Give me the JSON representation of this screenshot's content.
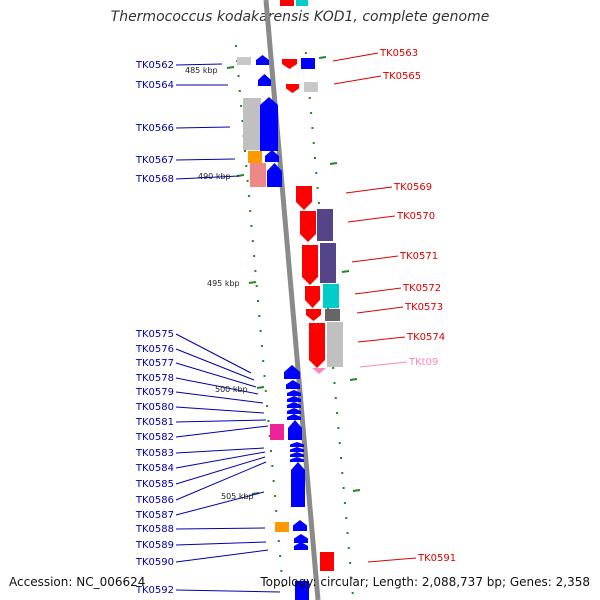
{
  "title": "Thermococcus kodakarensis KOD1, complete genome",
  "footer": {
    "accession": "Accession: NC_006624",
    "topology": "Topology: circular; Length: 2,088,737 bp; Genes: 2,358"
  },
  "colors": {
    "backbone": "#888888",
    "forward_gene": "#ff0000",
    "reverse_gene": "#0000ff",
    "trna": "#ff88bb",
    "label_left": "#0000aa",
    "label_right": "#dd0000",
    "tick": "#228822"
  },
  "kbp_markers": [
    "485 kbp",
    "490 kbp",
    "495 kbp",
    "500 kbp",
    "505 kbp"
  ],
  "left_genes": [
    "TK0562",
    "TK0564",
    "TK0566",
    "TK0567",
    "TK0568",
    "TK0575",
    "TK0576",
    "TK0577",
    "TK0578",
    "TK0579",
    "TK0580",
    "TK0581",
    "TK0582",
    "TK0583",
    "TK0584",
    "TK0585",
    "TK0586",
    "TK0587",
    "TK0588",
    "TK0589",
    "TK0590",
    "TK0592"
  ],
  "right_genes": [
    "TK0563",
    "TK0565",
    "TK0569",
    "TK0570",
    "TK0571",
    "TK0572",
    "TK0573",
    "TK0574",
    "TKt09",
    "TK0591"
  ]
}
